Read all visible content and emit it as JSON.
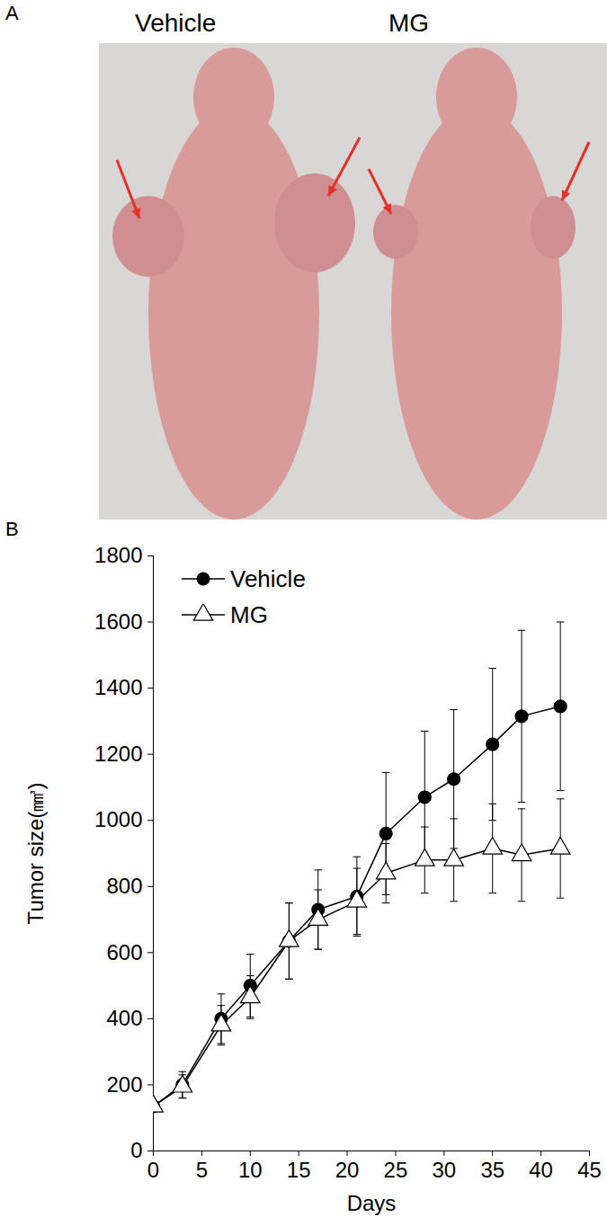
{
  "photo": {
    "panel_label": "A",
    "labels": [
      "Vehicle",
      "MG"
    ]
  },
  "chart_data": {
    "type": "line",
    "panel_label": "B",
    "x_label": "Days",
    "y_label": "Tumor size(㎣)",
    "x": [
      0,
      3,
      7,
      10,
      14,
      17,
      21,
      24,
      28,
      31,
      35,
      38,
      42
    ],
    "series": [
      {
        "name": "Vehicle",
        "color": "#000000",
        "marker": "circle",
        "values": [
          135,
          200,
          400,
          500,
          635,
          730,
          770,
          960,
          1070,
          1125,
          1230,
          1315,
          1345
        ],
        "errors": [
          15,
          40,
          75,
          95,
          115,
          120,
          120,
          185,
          200,
          210,
          230,
          260,
          255
        ]
      },
      {
        "name": "MG",
        "color": "#000000",
        "marker": "triangle-open",
        "values": [
          135,
          195,
          380,
          465,
          635,
          700,
          755,
          840,
          880,
          880,
          915,
          895,
          915
        ],
        "errors": [
          15,
          35,
          60,
          65,
          115,
          90,
          100,
          90,
          100,
          125,
          135,
          140,
          150
        ]
      }
    ],
    "xlim": [
      0,
      45
    ],
    "xticks": [
      0,
      5,
      10,
      15,
      20,
      25,
      30,
      35,
      40,
      45
    ],
    "ylim": [
      0,
      1800
    ],
    "yticks": [
      0,
      200,
      400,
      600,
      800,
      1000,
      1200,
      1400,
      1600,
      1800
    ],
    "legend": "upper left",
    "grid": false
  }
}
